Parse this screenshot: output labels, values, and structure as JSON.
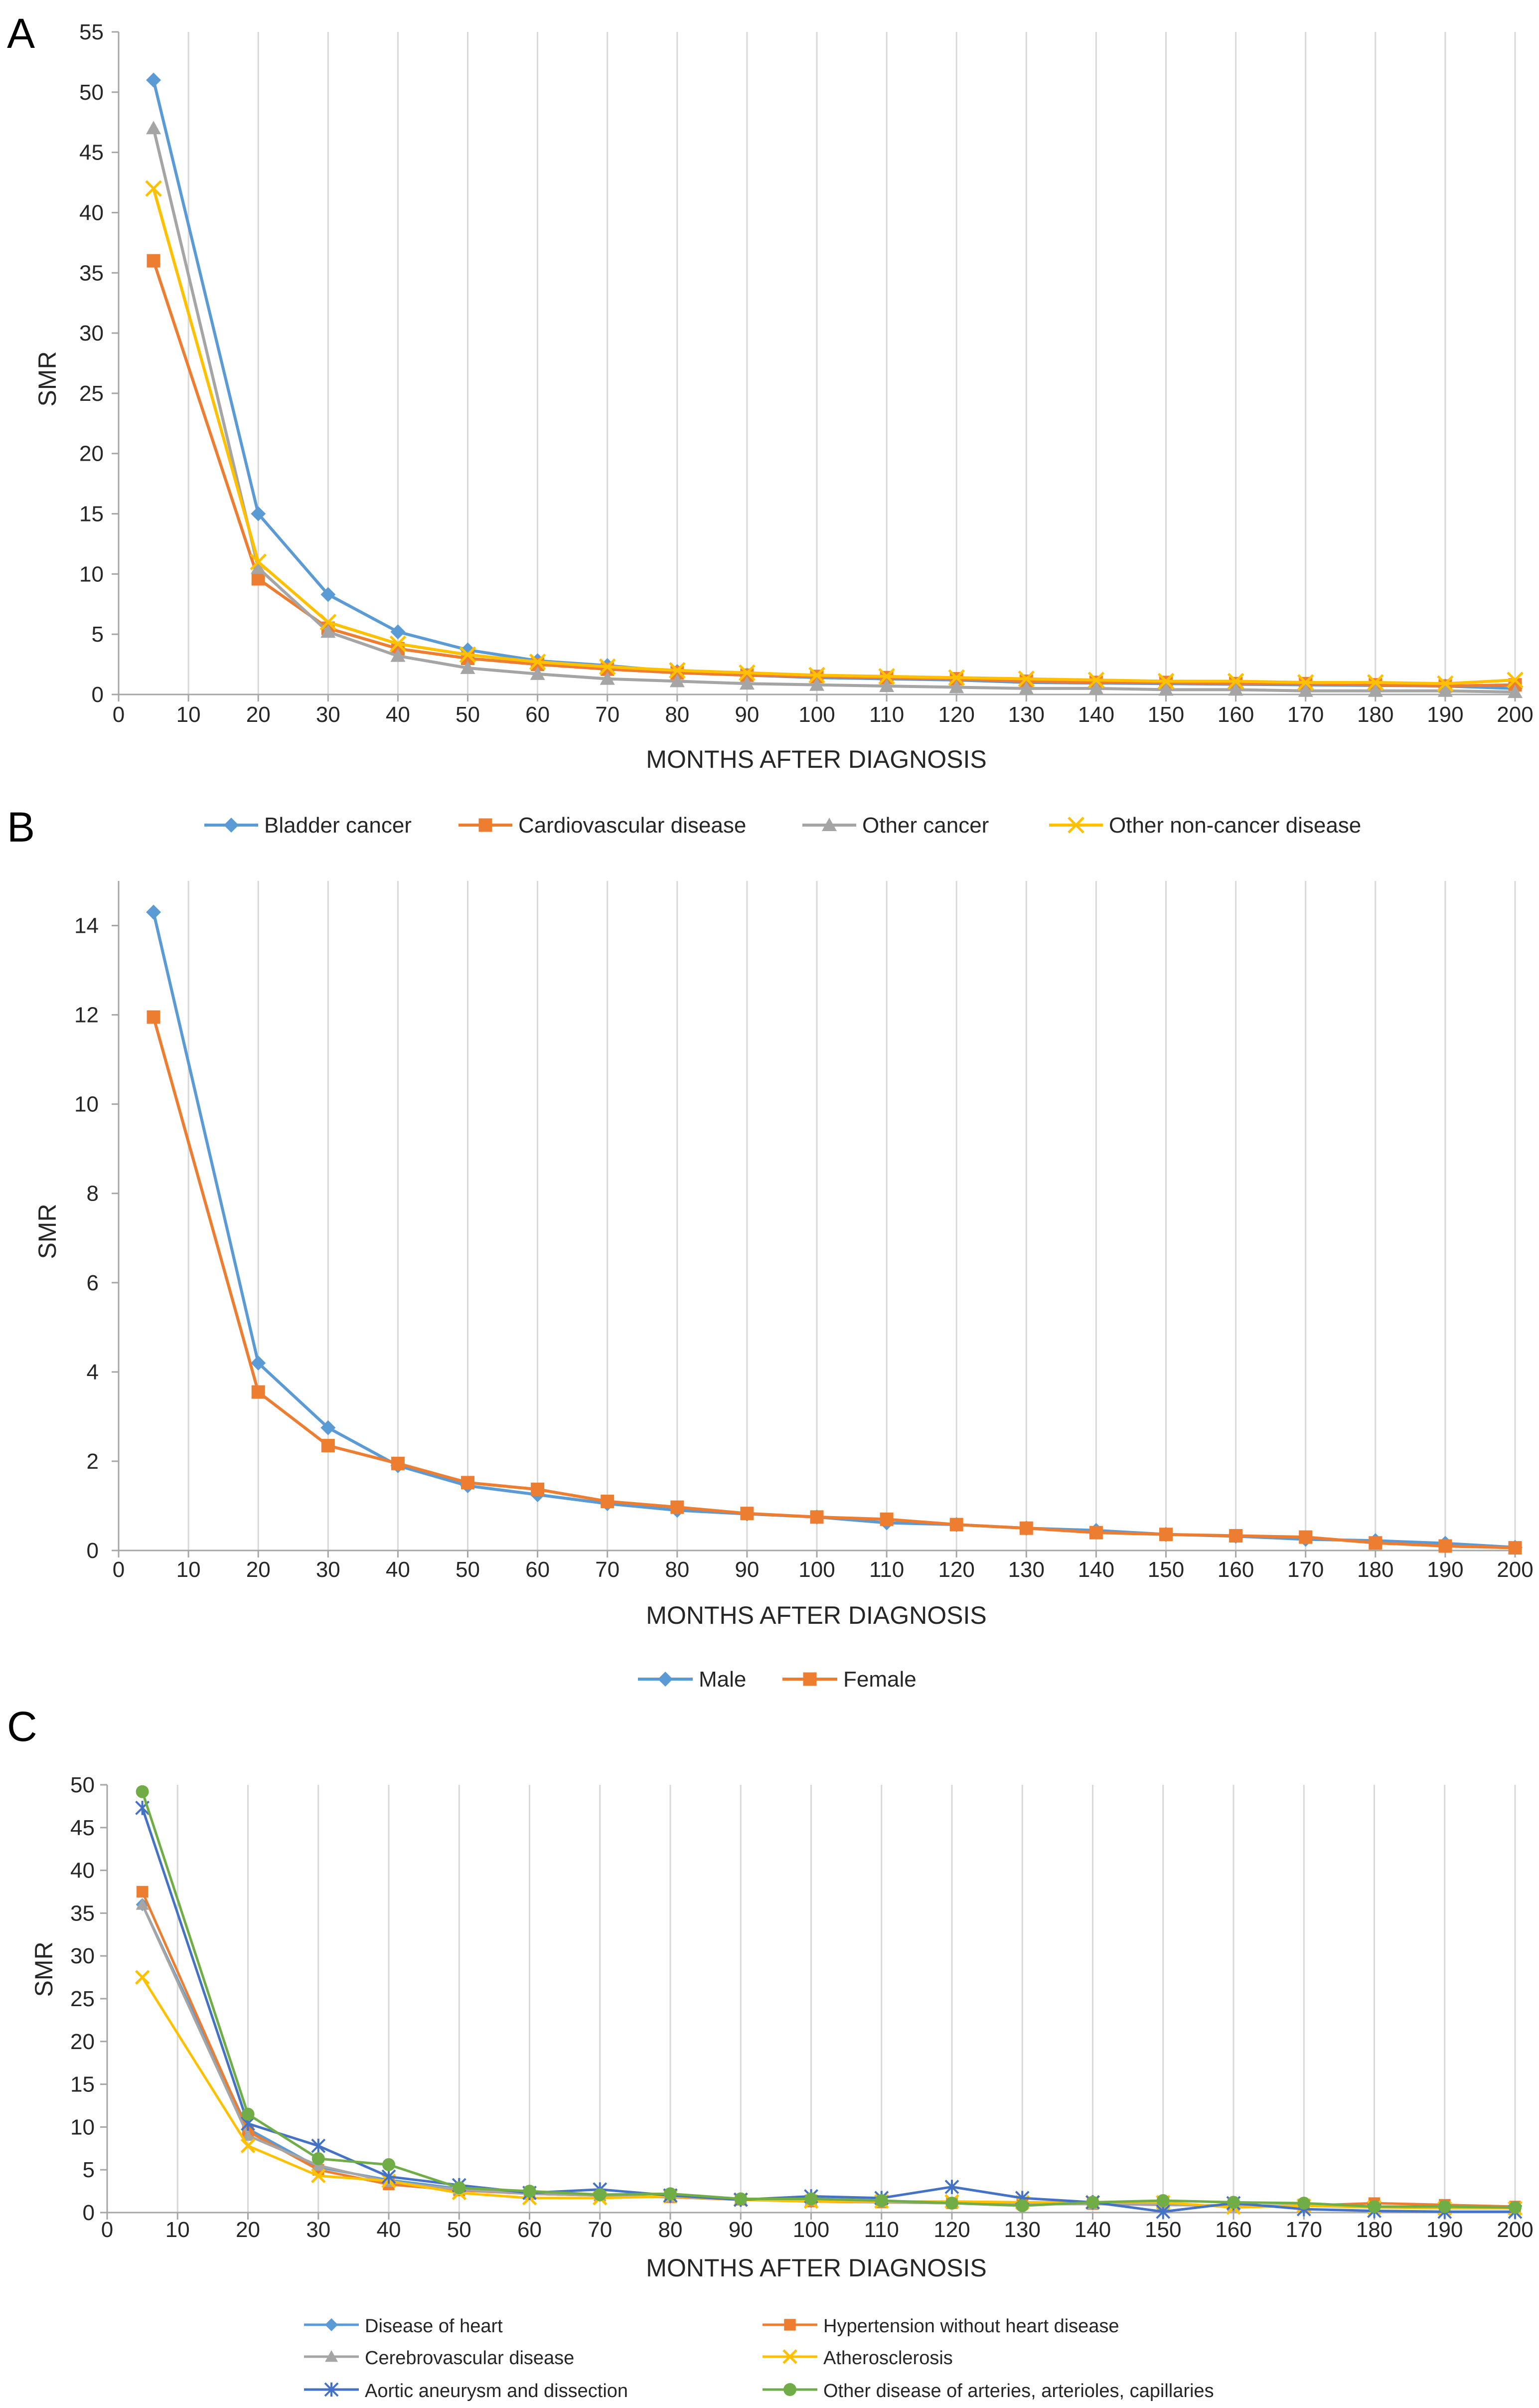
{
  "chart_data": [
    {
      "panel": "A",
      "type": "line",
      "xlabel": "MONTHS AFTER DIAGNOSIS",
      "ylabel": "SMR",
      "xlim": [
        0,
        200
      ],
      "ylim": [
        0,
        55
      ],
      "x_ticks": [
        0,
        10,
        20,
        30,
        40,
        50,
        60,
        70,
        80,
        90,
        100,
        110,
        120,
        130,
        140,
        150,
        160,
        170,
        180,
        190,
        200
      ],
      "y_ticks": [
        0,
        5,
        10,
        15,
        20,
        25,
        30,
        35,
        40,
        45,
        50,
        55
      ],
      "grid": "vertical",
      "legend": "bottom",
      "x": [
        5,
        20,
        30,
        40,
        50,
        60,
        70,
        80,
        90,
        100,
        110,
        120,
        130,
        140,
        150,
        160,
        170,
        180,
        190,
        200
      ],
      "series": [
        {
          "name": "Bladder cancer",
          "color": "#5B9BD5",
          "marker": "diamond",
          "values": [
            51,
            15,
            8.3,
            5.2,
            3.7,
            2.8,
            2.4,
            1.9,
            1.6,
            1.4,
            1.3,
            1.2,
            1.0,
            0.95,
            0.9,
            0.85,
            0.8,
            0.75,
            0.7,
            0.5
          ]
        },
        {
          "name": "Cardiovascular disease",
          "color": "#ED7D31",
          "marker": "square",
          "values": [
            36,
            9.6,
            5.5,
            3.8,
            3.0,
            2.5,
            2.1,
            1.8,
            1.6,
            1.5,
            1.4,
            1.3,
            1.1,
            1.0,
            1.0,
            0.9,
            0.9,
            0.8,
            0.7,
            0.8
          ]
        },
        {
          "name": "Other cancer",
          "color": "#A5A5A5",
          "marker": "triangle",
          "values": [
            47,
            10.5,
            5.2,
            3.2,
            2.2,
            1.7,
            1.3,
            1.1,
            0.9,
            0.8,
            0.7,
            0.6,
            0.5,
            0.5,
            0.4,
            0.4,
            0.3,
            0.3,
            0.3,
            0.2
          ]
        },
        {
          "name": "Other non-cancer disease",
          "color": "#FFC000",
          "marker": "x",
          "values": [
            42,
            11,
            6.0,
            4.2,
            3.3,
            2.7,
            2.3,
            2.0,
            1.8,
            1.6,
            1.5,
            1.4,
            1.3,
            1.2,
            1.1,
            1.1,
            1.0,
            1.0,
            0.9,
            1.2
          ]
        }
      ]
    },
    {
      "panel": "B",
      "type": "line",
      "xlabel": "MONTHS AFTER DIAGNOSIS",
      "ylabel": "SMR",
      "xlim": [
        0,
        200
      ],
      "ylim": [
        0,
        15
      ],
      "x_ticks": [
        0,
        10,
        20,
        30,
        40,
        50,
        60,
        70,
        80,
        90,
        100,
        110,
        120,
        130,
        140,
        150,
        160,
        170,
        180,
        190,
        200
      ],
      "y_ticks": [
        0,
        2,
        4,
        6,
        8,
        10,
        12,
        14
      ],
      "grid": "vertical",
      "legend": "bottom",
      "x": [
        5,
        20,
        30,
        40,
        50,
        60,
        70,
        80,
        90,
        100,
        110,
        120,
        130,
        140,
        150,
        160,
        170,
        180,
        190,
        200
      ],
      "series": [
        {
          "name": "Male",
          "color": "#5B9BD5",
          "marker": "diamond",
          "values": [
            14.3,
            4.2,
            2.75,
            1.9,
            1.45,
            1.25,
            1.05,
            0.9,
            0.82,
            0.75,
            0.62,
            0.58,
            0.5,
            0.45,
            0.36,
            0.32,
            0.25,
            0.22,
            0.16,
            0.07
          ]
        },
        {
          "name": "Female",
          "color": "#ED7D31",
          "marker": "square",
          "values": [
            11.95,
            3.55,
            2.35,
            1.95,
            1.52,
            1.37,
            1.1,
            0.97,
            0.83,
            0.75,
            0.7,
            0.58,
            0.5,
            0.4,
            0.36,
            0.33,
            0.3,
            0.17,
            0.1,
            0.06
          ]
        }
      ]
    },
    {
      "panel": "C",
      "type": "line",
      "xlabel": "MONTHS AFTER DIAGNOSIS",
      "ylabel": "SMR",
      "xlim": [
        0,
        200
      ],
      "ylim": [
        0,
        50
      ],
      "x_ticks": [
        0,
        10,
        20,
        30,
        40,
        50,
        60,
        70,
        80,
        90,
        100,
        110,
        120,
        130,
        140,
        150,
        160,
        170,
        180,
        190,
        200
      ],
      "y_ticks": [
        0,
        5,
        10,
        15,
        20,
        25,
        30,
        35,
        40,
        45,
        50
      ],
      "grid": "vertical",
      "legend": "bottom",
      "x": [
        5,
        20,
        30,
        40,
        50,
        60,
        70,
        80,
        90,
        100,
        110,
        120,
        130,
        140,
        150,
        160,
        170,
        180,
        190,
        200
      ],
      "series": [
        {
          "name": "Disease of  heart",
          "color": "#5B9BD5",
          "marker": "diamond",
          "values": [
            36,
            9.8,
            5.3,
            3.8,
            2.8,
            2.2,
            2.0,
            1.8,
            1.6,
            1.3,
            1.3,
            1.1,
            1.0,
            1.2,
            0.9,
            0.8,
            0.8,
            0.7,
            0.7,
            0.6
          ]
        },
        {
          "name": "Hypertension without heart disease",
          "color": "#ED7D31",
          "marker": "square",
          "values": [
            37.5,
            9.5,
            5.0,
            3.3,
            2.6,
            2.2,
            2.0,
            1.8,
            1.5,
            1.3,
            1.2,
            1.1,
            1.0,
            1.0,
            0.9,
            0.8,
            0.8,
            1.1,
            0.9,
            0.7
          ]
        },
        {
          "name": "Cerebrovascular disease",
          "color": "#A5A5A5",
          "marker": "triangle",
          "values": [
            36,
            9.0,
            5.5,
            3.6,
            2.7,
            2.2,
            2.0,
            1.8,
            1.6,
            1.4,
            1.2,
            1.1,
            1.0,
            1.0,
            0.9,
            0.8,
            0.8,
            0.7,
            0.6,
            0.5
          ]
        },
        {
          "name": "Atherosclerosis",
          "color": "#FFC000",
          "marker": "x",
          "values": [
            27.5,
            7.8,
            4.3,
            3.7,
            2.3,
            1.7,
            1.7,
            1.9,
            1.5,
            1.3,
            1.3,
            1.3,
            1.2,
            1.2,
            1.2,
            0.6,
            0.8,
            0.6,
            0.5,
            0.5
          ]
        },
        {
          "name": "Aortic aneurysm and dissection",
          "color": "#4472C4",
          "marker": "star",
          "values": [
            47.3,
            10.4,
            7.8,
            4.2,
            3.2,
            2.3,
            2.7,
            2.0,
            1.5,
            1.9,
            1.7,
            3.0,
            1.7,
            1.2,
            0.1,
            1.1,
            0.4,
            0.2,
            0.1,
            0.1
          ]
        },
        {
          "name": "Other disease of arteries, arterioles, capillaries",
          "color": "#70AD47",
          "marker": "circle",
          "values": [
            49.2,
            11.5,
            6.3,
            5.6,
            2.9,
            2.5,
            2.1,
            2.2,
            1.6,
            1.6,
            1.4,
            1.1,
            0.8,
            1.2,
            1.4,
            1.2,
            1.1,
            0.7,
            0.7,
            0.6
          ]
        }
      ]
    }
  ]
}
